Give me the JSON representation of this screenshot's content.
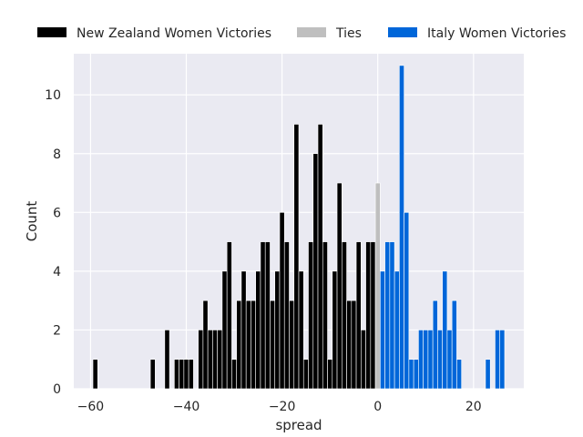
{
  "chart_data": {
    "type": "bar",
    "title": "",
    "xlabel": "spread",
    "ylabel": "Count",
    "xlim": [
      -63.5,
      30.5
    ],
    "ylim": [
      0,
      11.4
    ],
    "xticks": [
      -60,
      -40,
      -20,
      0,
      20
    ],
    "yticks": [
      0,
      2,
      4,
      6,
      8,
      10
    ],
    "grid": true,
    "legend_position": "top",
    "series": [
      {
        "name": "New Zealand Women Victories",
        "color": "#000000",
        "x": [
          -59,
          -47,
          -44,
          -42,
          -41,
          -40,
          -39,
          -37,
          -36,
          -35,
          -34,
          -33,
          -32,
          -31,
          -30,
          -29,
          -28,
          -27,
          -26,
          -25,
          -24,
          -23,
          -22,
          -21,
          -20,
          -19,
          -18,
          -17,
          -16,
          -15,
          -14,
          -13,
          -12,
          -11,
          -10,
          -9,
          -8,
          -7,
          -6,
          -5,
          -4,
          -3,
          -2,
          -1
        ],
        "values": [
          1,
          1,
          2,
          1,
          1,
          1,
          1,
          2,
          3,
          2,
          2,
          2,
          4,
          5,
          1,
          3,
          4,
          3,
          3,
          4,
          5,
          5,
          3,
          4,
          6,
          5,
          3,
          9,
          4,
          1,
          5,
          8,
          9,
          5,
          1,
          4,
          7,
          5,
          3,
          3,
          5,
          2,
          5,
          5
        ]
      },
      {
        "name": "Ties",
        "color": "#bfbfbf",
        "x": [
          0
        ],
        "values": [
          7
        ]
      },
      {
        "name": "Italy Women Victories",
        "color": "#0066d9",
        "x": [
          1,
          2,
          3,
          4,
          5,
          6,
          7,
          8,
          9,
          10,
          11,
          12,
          13,
          14,
          15,
          16,
          17,
          23,
          25,
          26
        ],
        "values": [
          4,
          5,
          5,
          4,
          11,
          6,
          1,
          1,
          2,
          2,
          2,
          3,
          2,
          4,
          2,
          3,
          1,
          1,
          2,
          2
        ]
      }
    ]
  }
}
